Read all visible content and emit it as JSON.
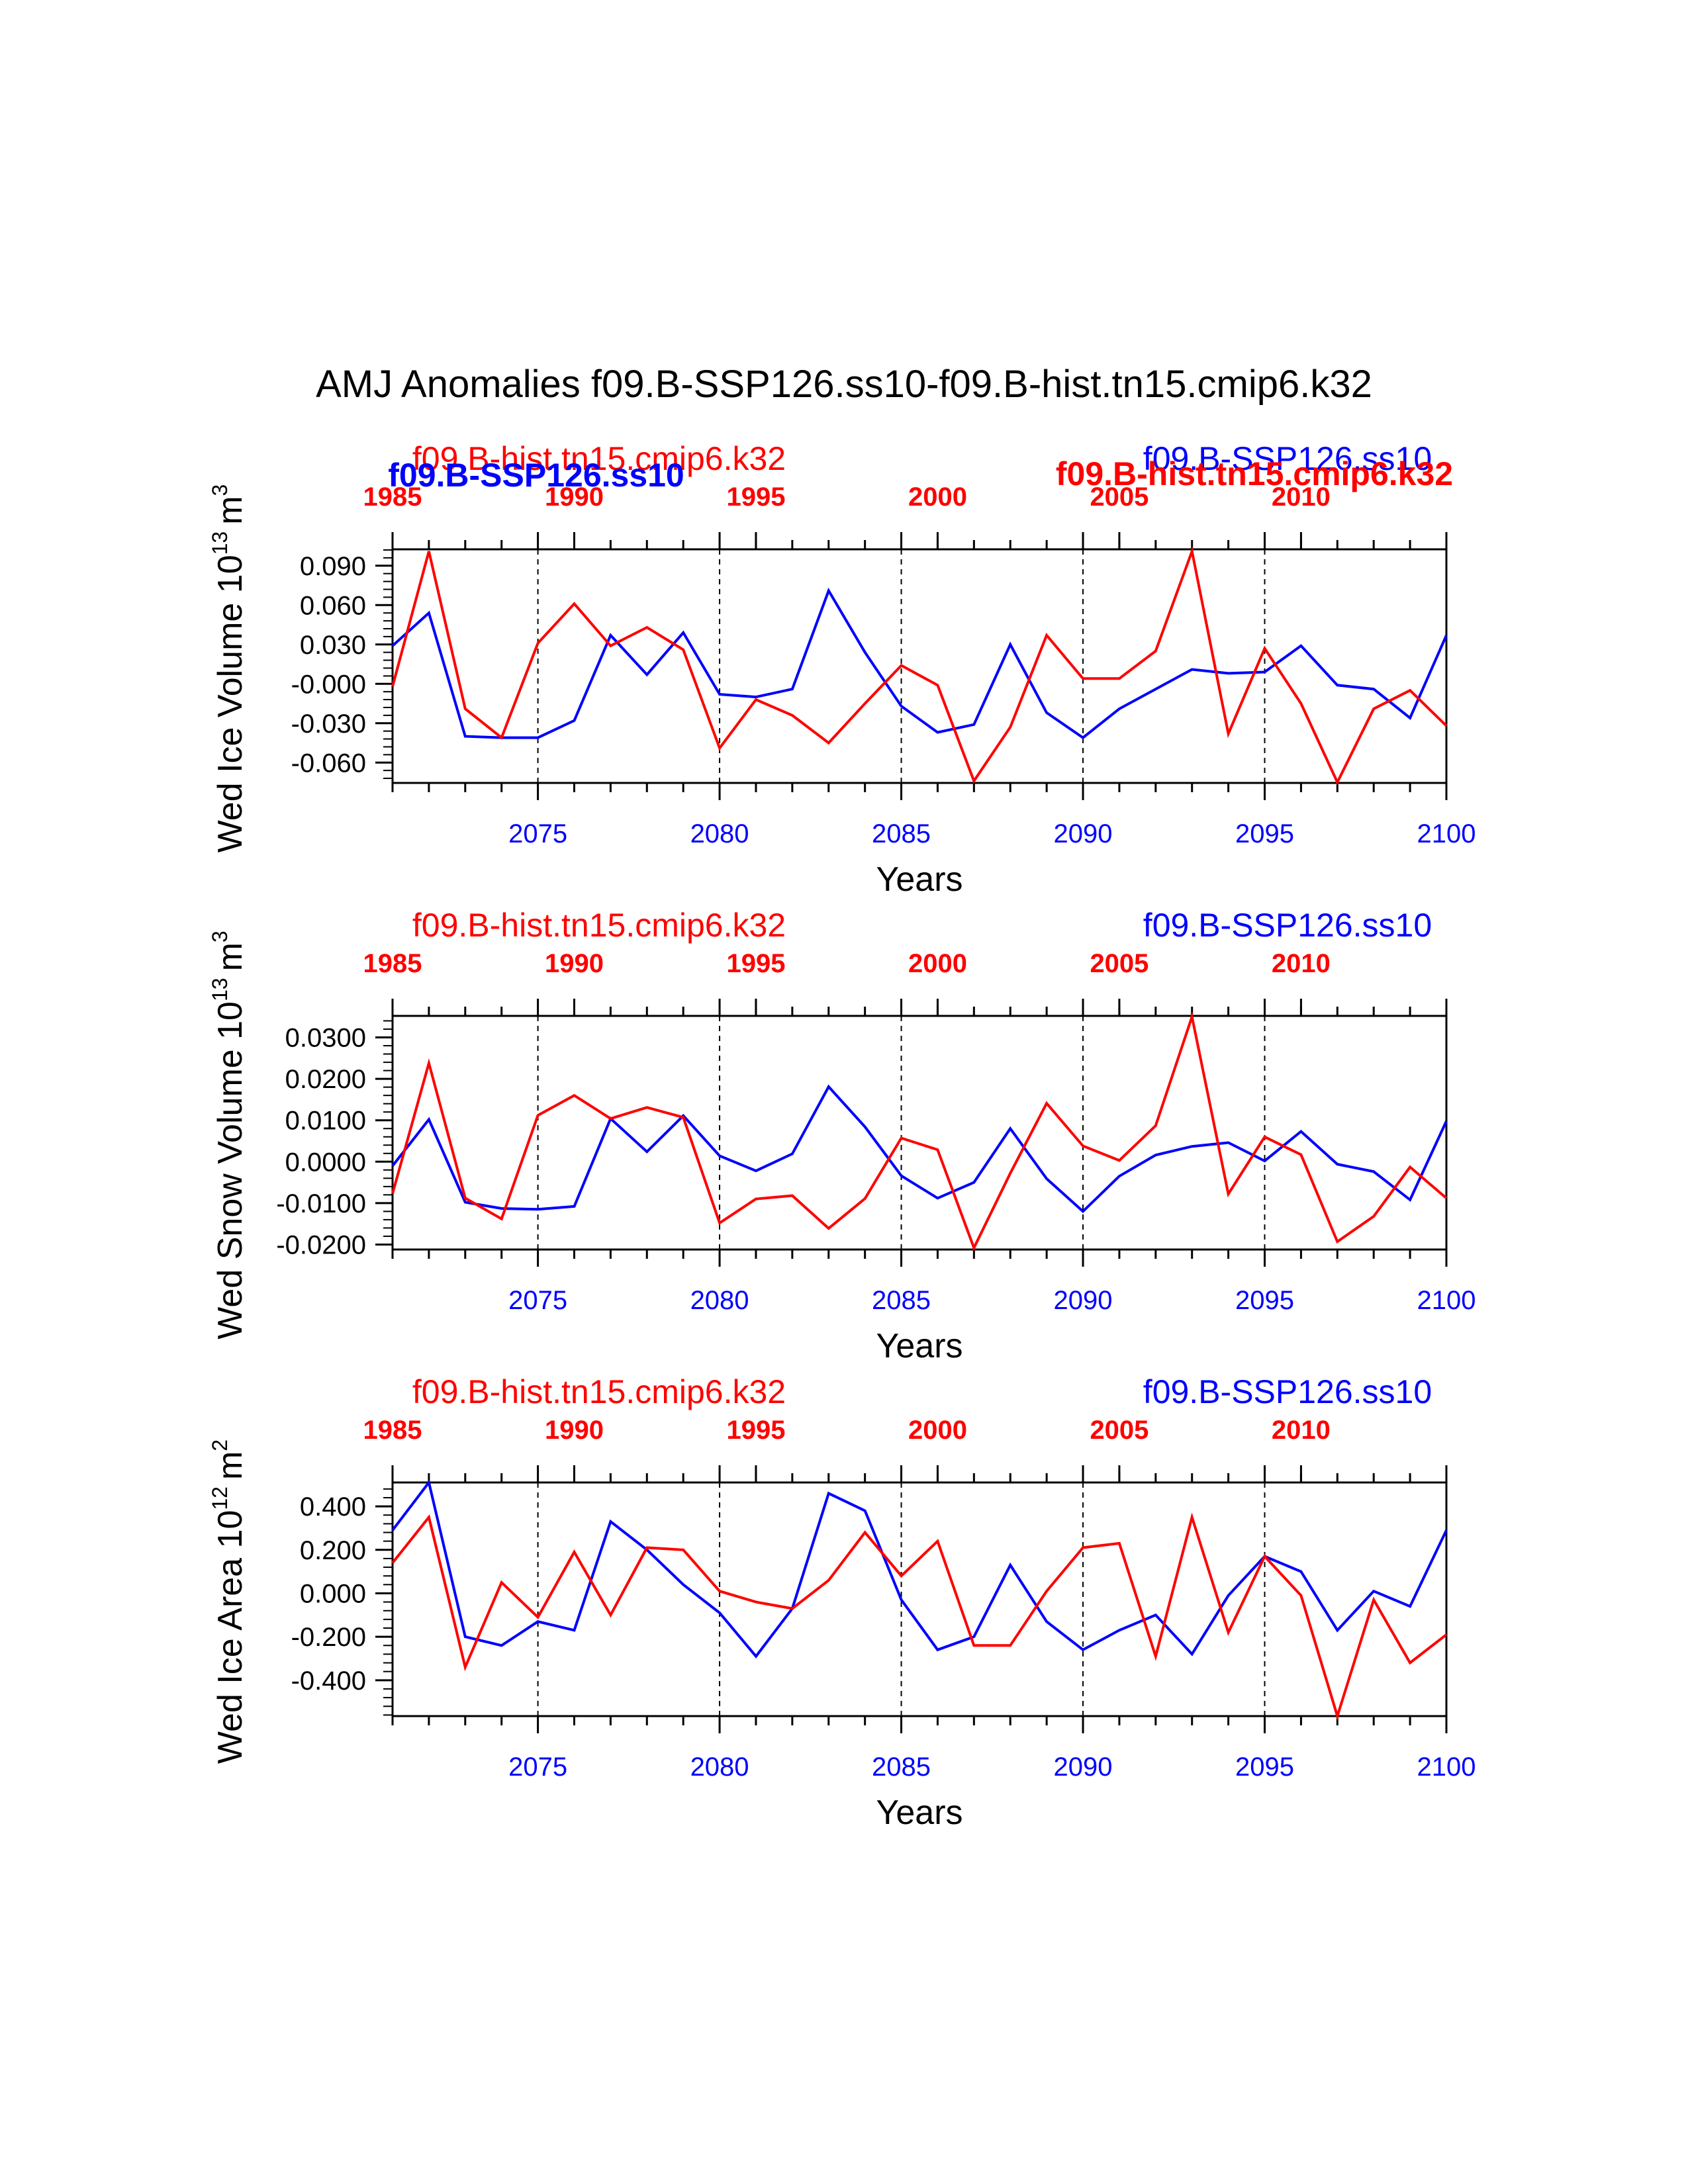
{
  "title": "AMJ Anomalies f09.B-SSP126.ss10-f09.B-hist.tn15.cmip6.k32",
  "colors": {
    "blue": "#0000ff",
    "red": "#ff0000",
    "axis": "#000000"
  },
  "chart_data": [
    {
      "type": "line",
      "ylabel_text": "Wed Ice Volume 10",
      "ylabel_exp": "13",
      "ylabel_unit": "m",
      "ylabel_unit_exp": "3",
      "xlabel": "Years",
      "top_left_label": "f09.B-hist.tn15.cmip6.k32",
      "top_right_label": "f09.B-SSP126.ss10",
      "overlay_left_label": "f09.B-SSP126.ss10",
      "overlay_right_label": "f09.B-hist.tn15.cmip6.k32",
      "ylim": [
        -0.0755,
        0.1025
      ],
      "yticks": [
        0.09,
        0.06,
        0.03,
        0.0,
        -0.03,
        -0.06
      ],
      "ytick_labels": [
        "0.090",
        "0.060",
        "0.030",
        "-0.000",
        "-0.030",
        "-0.060"
      ],
      "xlim_bottom": [
        2071,
        2100
      ],
      "xticks_bottom": [
        2075,
        2080,
        2085,
        2090,
        2095,
        2100
      ],
      "xticks_top": [
        1985,
        1990,
        1995,
        2000,
        2005,
        2010
      ],
      "series": [
        {
          "name": "f09.B-SSP126.ss10",
          "color": "blue",
          "x": [
            2071,
            2072,
            2073,
            2074,
            2075,
            2076,
            2077,
            2078,
            2079,
            2080,
            2081,
            2082,
            2083,
            2084,
            2085,
            2086,
            2087,
            2088,
            2089,
            2090,
            2091,
            2092,
            2093,
            2094,
            2095,
            2096,
            2097,
            2098,
            2099,
            2100
          ],
          "values": [
            0.029,
            0.054,
            -0.04,
            -0.041,
            -0.041,
            -0.028,
            0.037,
            0.007,
            0.039,
            -0.008,
            -0.01,
            -0.004,
            0.071,
            0.024,
            -0.017,
            -0.037,
            -0.031,
            0.03,
            -0.022,
            -0.041,
            -0.019,
            -0.004,
            0.011,
            0.008,
            0.009,
            0.029,
            -0.001,
            -0.004,
            -0.026,
            0.037
          ]
        },
        {
          "name": "f09.B-hist.tn15.cmip6.k32",
          "color": "red",
          "x": [
            2071,
            2072,
            2073,
            2074,
            2075,
            2076,
            2077,
            2078,
            2079,
            2080,
            2081,
            2082,
            2083,
            2084,
            2085,
            2086,
            2087,
            2088,
            2089,
            2090,
            2091,
            2092,
            2093,
            2094,
            2095,
            2096,
            2097,
            2098,
            2099,
            2100
          ],
          "values": [
            -0.002,
            0.101,
            -0.019,
            -0.041,
            0.031,
            0.061,
            0.029,
            0.043,
            0.026,
            -0.049,
            -0.012,
            -0.024,
            -0.045,
            -0.015,
            0.014,
            -0.001,
            -0.074,
            -0.033,
            0.037,
            0.004,
            0.004,
            0.025,
            0.101,
            -0.038,
            0.027,
            -0.015,
            -0.075,
            -0.019,
            -0.005,
            -0.032
          ]
        }
      ]
    },
    {
      "type": "line",
      "ylabel_text": "Wed Snow Volume 10",
      "ylabel_exp": "13",
      "ylabel_unit": "m",
      "ylabel_unit_exp": "3",
      "xlabel": "Years",
      "top_left_label": "f09.B-hist.tn15.cmip6.k32",
      "top_right_label": "f09.B-SSP126.ss10",
      "ylim": [
        -0.0212,
        0.0352
      ],
      "yticks": [
        0.03,
        0.02,
        0.01,
        0.0,
        -0.01,
        -0.02
      ],
      "ytick_labels": [
        "0.0300",
        "0.0200",
        "0.0100",
        "0.0000",
        "-0.0100",
        "-0.0200"
      ],
      "xlim_bottom": [
        2071,
        2100
      ],
      "xticks_bottom": [
        2075,
        2080,
        2085,
        2090,
        2095,
        2100
      ],
      "xticks_top": [
        1985,
        1990,
        1995,
        2000,
        2005,
        2010
      ],
      "series": [
        {
          "name": "f09.B-SSP126.ss10",
          "color": "blue",
          "x": [
            2071,
            2072,
            2073,
            2074,
            2075,
            2076,
            2077,
            2078,
            2079,
            2080,
            2081,
            2082,
            2083,
            2084,
            2085,
            2086,
            2087,
            2088,
            2089,
            2090,
            2091,
            2092,
            2093,
            2094,
            2095,
            2096,
            2097,
            2098,
            2099,
            2100
          ],
          "values": [
            -0.001,
            0.0102,
            -0.0098,
            -0.0113,
            -0.0115,
            -0.0108,
            0.0104,
            0.0024,
            0.0111,
            0.0014,
            -0.0022,
            0.0019,
            0.0181,
            0.0084,
            -0.0034,
            -0.0088,
            -0.005,
            0.008,
            -0.0041,
            -0.012,
            -0.0035,
            0.0016,
            0.0037,
            0.0046,
            0.0002,
            0.0073,
            -0.0006,
            -0.0024,
            -0.0092,
            0.0098
          ]
        },
        {
          "name": "f09.B-hist.tn15.cmip6.k32",
          "color": "red",
          "x": [
            2071,
            2072,
            2073,
            2074,
            2075,
            2076,
            2077,
            2078,
            2079,
            2080,
            2081,
            2082,
            2083,
            2084,
            2085,
            2086,
            2087,
            2088,
            2089,
            2090,
            2091,
            2092,
            2093,
            2094,
            2095,
            2096,
            2097,
            2098,
            2099,
            2100
          ],
          "values": [
            -0.0077,
            0.0238,
            -0.0088,
            -0.0138,
            0.0112,
            0.016,
            0.0104,
            0.0131,
            0.0107,
            -0.0148,
            -0.009,
            -0.0082,
            -0.0161,
            -0.0089,
            0.0057,
            0.0029,
            -0.0208,
            -0.0028,
            0.0141,
            0.0038,
            0.0003,
            0.0087,
            0.035,
            -0.0078,
            0.006,
            0.0017,
            -0.0193,
            -0.0132,
            -0.0013,
            -0.0088
          ]
        }
      ]
    },
    {
      "type": "line",
      "ylabel_text": "Wed Ice Area 10",
      "ylabel_exp": "12",
      "ylabel_unit": "m",
      "ylabel_unit_exp": "2",
      "xlabel": "Years",
      "top_left_label": "f09.B-hist.tn15.cmip6.k32",
      "top_right_label": "f09.B-SSP126.ss10",
      "ylim": [
        -0.565,
        0.51
      ],
      "yticks": [
        0.4,
        0.2,
        0.0,
        -0.2,
        -0.4
      ],
      "ytick_labels": [
        "0.400",
        "0.200",
        "0.000",
        "-0.200",
        "-0.400"
      ],
      "xlim_bottom": [
        2071,
        2100
      ],
      "xticks_bottom": [
        2075,
        2080,
        2085,
        2090,
        2095,
        2100
      ],
      "xticks_top": [
        1985,
        1990,
        1995,
        2000,
        2005,
        2010
      ],
      "series": [
        {
          "name": "f09.B-SSP126.ss10",
          "color": "blue",
          "x": [
            2071,
            2072,
            2073,
            2074,
            2075,
            2076,
            2077,
            2078,
            2079,
            2080,
            2081,
            2082,
            2083,
            2084,
            2085,
            2086,
            2087,
            2088,
            2089,
            2090,
            2091,
            2092,
            2093,
            2094,
            2095,
            2096,
            2097,
            2098,
            2099,
            2100
          ],
          "values": [
            0.29,
            0.51,
            -0.2,
            -0.24,
            -0.13,
            -0.17,
            0.33,
            0.2,
            0.04,
            -0.09,
            -0.29,
            -0.07,
            0.46,
            0.38,
            -0.03,
            -0.26,
            -0.2,
            0.13,
            -0.13,
            -0.26,
            -0.17,
            -0.1,
            -0.28,
            -0.01,
            0.17,
            0.1,
            -0.17,
            0.01,
            -0.06,
            0.29
          ]
        },
        {
          "name": "f09.B-hist.tn15.cmip6.k32",
          "color": "red",
          "x": [
            2071,
            2072,
            2073,
            2074,
            2075,
            2076,
            2077,
            2078,
            2079,
            2080,
            2081,
            2082,
            2083,
            2084,
            2085,
            2086,
            2087,
            2088,
            2089,
            2090,
            2091,
            2092,
            2093,
            2094,
            2095,
            2096,
            2097,
            2098,
            2099,
            2100
          ],
          "values": [
            0.14,
            0.35,
            -0.34,
            0.05,
            -0.11,
            0.19,
            -0.1,
            0.21,
            0.2,
            0.01,
            -0.04,
            -0.07,
            0.06,
            0.28,
            0.08,
            0.24,
            -0.24,
            -0.24,
            0.01,
            0.21,
            0.23,
            -0.29,
            0.35,
            -0.18,
            0.17,
            -0.01,
            -0.565,
            -0.03,
            -0.32,
            -0.19
          ]
        }
      ]
    }
  ]
}
